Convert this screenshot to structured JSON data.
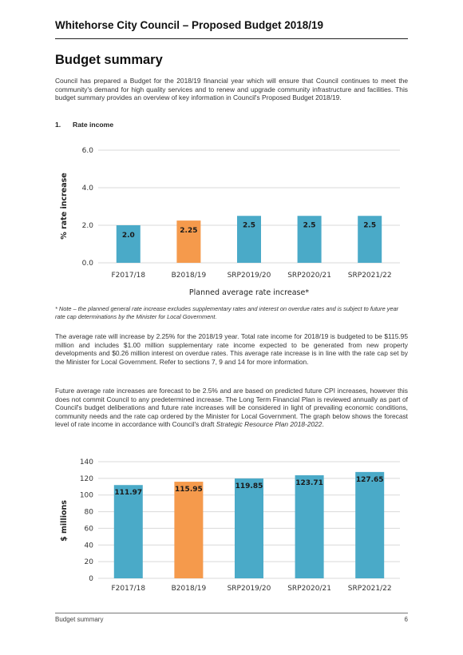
{
  "header": {
    "title": "Whitehorse City Council – Proposed Budget 2018/19"
  },
  "section": {
    "title": "Budget summary"
  },
  "intro": "Council has prepared a Budget for the 2018/19 financial year which will ensure that Council continues to meet the community's demand for high quality services and to renew and upgrade community infrastructure and facilities. This budget summary provides an overview of key information in Council's Proposed Budget 2018/19.",
  "subsection": {
    "number": "1.",
    "title": "Rate income"
  },
  "note": "* Note – the planned general rate increase excludes supplementary rates and interest on overdue rates and is subject to future year rate cap determinations by the Minister for Local Government.",
  "para1": "The average rate will increase by 2.25% for the 2018/19 year. Total rate income for 2018/19 is budgeted to be $115.95 million and includes $1.00 million supplementary rate income expected to be generated from new property developments and $0.26 million interest on overdue rates. This average rate increase is in line with the rate cap set by the Minister for Local Government. Refer to sections 7, 9 and 14 for more information.",
  "para2": {
    "text": "Future average rate increases are forecast to be 2.5% and are based on predicted future CPI increases, however this does not commit Council to any predetermined increase. The Long Term Financial Plan is reviewed annually as part of Council's budget deliberations and future rate increases will be considered in light of prevailing economic conditions, community needs and the rate cap ordered by the Minister for Local Government. The graph below shows the forecast level of rate income in accordance with Council's draft ",
    "emphasis": "Strategic Resource Plan 2018-2022",
    "end": "."
  },
  "footer": {
    "left": "Budget summary",
    "page": "6"
  },
  "colors": {
    "blue": "#4aaac8",
    "orange": "#f59a4c",
    "grid": "#d9d9d9"
  },
  "chart_data": [
    {
      "type": "bar",
      "categories": [
        "F2017/18",
        "B2018/19",
        "SRP2019/20",
        "SRP2020/21",
        "SRP2021/22"
      ],
      "values": [
        2.0,
        2.25,
        2.5,
        2.5,
        2.5
      ],
      "data_labels": [
        "2.0",
        "2.25",
        "2.5",
        "2.5",
        "2.5"
      ],
      "highlight_index": 1,
      "xlabel": "Planned average rate increase*",
      "ylabel": "% rate increase",
      "ylim": [
        0,
        6
      ],
      "yticks": [
        "0.0",
        "2.0",
        "4.0",
        "6.0"
      ],
      "ytick_values": [
        0,
        2,
        4,
        6
      ],
      "grid": true
    },
    {
      "type": "bar",
      "categories": [
        "F2017/18",
        "B2018/19",
        "SRP2019/20",
        "SRP2020/21",
        "SRP2021/22"
      ],
      "values": [
        111.97,
        115.95,
        119.85,
        123.71,
        127.65
      ],
      "data_labels": [
        "111.97",
        "115.95",
        "119.85",
        "123.71",
        "127.65"
      ],
      "highlight_index": 1,
      "xlabel": "",
      "ylabel": "$ millions",
      "ylim": [
        0,
        140
      ],
      "yticks": [
        "0",
        "20",
        "40",
        "60",
        "80",
        "100",
        "120",
        "140"
      ],
      "ytick_values": [
        0,
        20,
        40,
        60,
        80,
        100,
        120,
        140
      ],
      "grid": true
    }
  ]
}
